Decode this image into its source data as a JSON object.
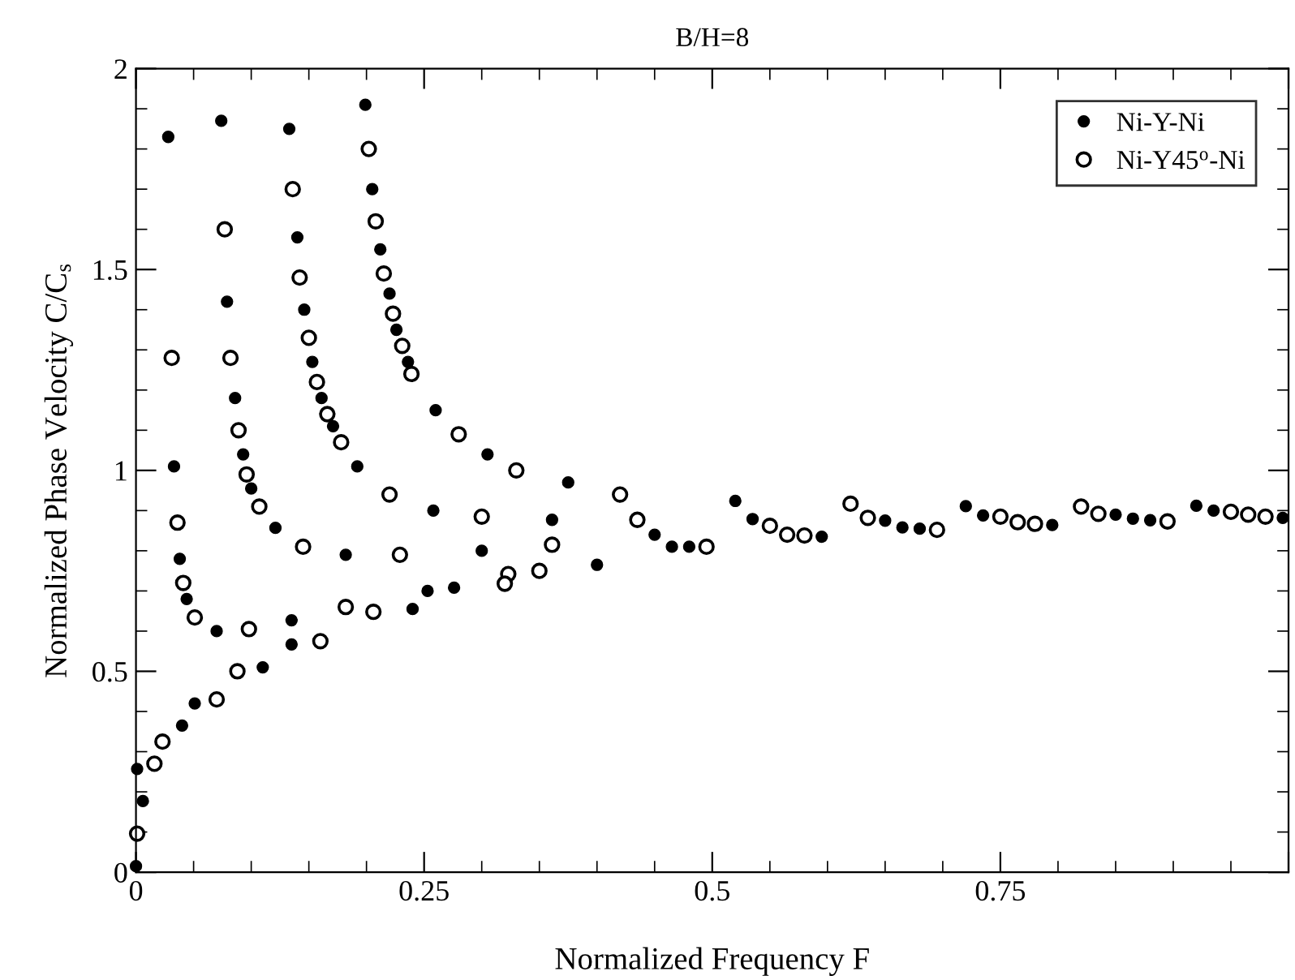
{
  "chart_data": {
    "type": "scatter",
    "title": "B/H=8",
    "xlabel": "Normalized Frequency F",
    "ylabel": "Normalized Phase Velocity C/C$_{s}$",
    "xlim": [
      0,
      1
    ],
    "ylim": [
      0,
      2
    ],
    "xticks": [
      0,
      0.25,
      0.5,
      0.75,
      {
        "value": 1,
        "label": null
      }
    ],
    "yticks": [
      0,
      0.5,
      1,
      1.5,
      2
    ],
    "legend": "top right",
    "grid": false,
    "marker": "circle",
    "series": [
      {
        "name": "Ni-Y-Ni",
        "color": "#000000",
        "x": [
          0.199,
          0.205,
          0.212,
          0.22,
          0.226,
          0.236,
          0.26,
          0.305,
          0.375,
          0.52,
          0.72,
          0.92,
          0.133,
          0.14,
          0.146,
          0.153,
          0.161,
          0.171,
          0.192,
          0.258,
          0.361,
          0.535,
          0.735,
          0.935,
          0.074,
          0.079,
          0.086,
          0.093,
          0.1,
          0.121,
          0.182,
          0.3,
          0.45,
          0.65,
          0.85,
          0.028,
          0.033,
          0.038,
          0.044,
          0.07,
          0.135,
          0.253,
          0.465,
          0.665,
          0.865,
          0.001,
          0.051,
          0.135,
          0.276,
          0.48,
          0.68,
          0.88,
          0.0,
          0.006,
          0.04,
          0.11,
          0.24,
          0.4,
          0.595,
          0.795,
          0.995
        ],
        "values": [
          1.91,
          1.7,
          1.55,
          1.44,
          1.35,
          1.27,
          1.15,
          1.04,
          0.97,
          0.924,
          0.911,
          0.912,
          1.85,
          1.58,
          1.4,
          1.27,
          1.18,
          1.11,
          1.01,
          0.9,
          0.877,
          0.879,
          0.888,
          0.9,
          1.87,
          1.42,
          1.18,
          1.04,
          0.955,
          0.857,
          0.79,
          0.8,
          0.84,
          0.875,
          0.89,
          1.83,
          1.01,
          0.78,
          0.68,
          0.6,
          0.627,
          0.7,
          0.81,
          0.858,
          0.88,
          0.257,
          0.42,
          0.567,
          0.708,
          0.81,
          0.855,
          0.876,
          0.015,
          0.177,
          0.365,
          0.51,
          0.655,
          0.765,
          0.835,
          0.864,
          0.882
        ]
      },
      {
        "name": "Ni-Y45$^{o}$-Ni",
        "color": "#000000",
        "x": [
          0.202,
          0.208,
          0.215,
          0.223,
          0.231,
          0.239,
          0.28,
          0.33,
          0.42,
          0.62,
          0.82,
          0.136,
          0.142,
          0.15,
          0.157,
          0.166,
          0.178,
          0.22,
          0.3,
          0.435,
          0.635,
          0.835,
          0.077,
          0.082,
          0.089,
          0.096,
          0.107,
          0.145,
          0.229,
          0.361,
          0.55,
          0.75,
          0.95,
          0.031,
          0.036,
          0.041,
          0.051,
          0.098,
          0.182,
          0.323,
          0.565,
          0.765,
          0.965,
          0.023,
          0.088,
          0.206,
          0.35,
          0.58,
          0.78,
          0.98,
          0.001,
          0.016,
          0.07,
          0.16,
          0.32,
          0.495,
          0.695,
          0.895
        ],
        "values": [
          1.8,
          1.62,
          1.49,
          1.39,
          1.31,
          1.24,
          1.09,
          1.0,
          0.94,
          0.917,
          0.91,
          1.7,
          1.48,
          1.33,
          1.22,
          1.14,
          1.07,
          0.94,
          0.885,
          0.877,
          0.882,
          0.892,
          1.6,
          1.28,
          1.1,
          0.99,
          0.91,
          0.81,
          0.79,
          0.815,
          0.862,
          0.885,
          0.897,
          1.28,
          0.87,
          0.72,
          0.634,
          0.605,
          0.66,
          0.742,
          0.84,
          0.871,
          0.89,
          0.325,
          0.5,
          0.648,
          0.75,
          0.838,
          0.867,
          0.885,
          0.096,
          0.27,
          0.43,
          0.575,
          0.718,
          0.81,
          0.852,
          0.873
        ]
      }
    ]
  }
}
